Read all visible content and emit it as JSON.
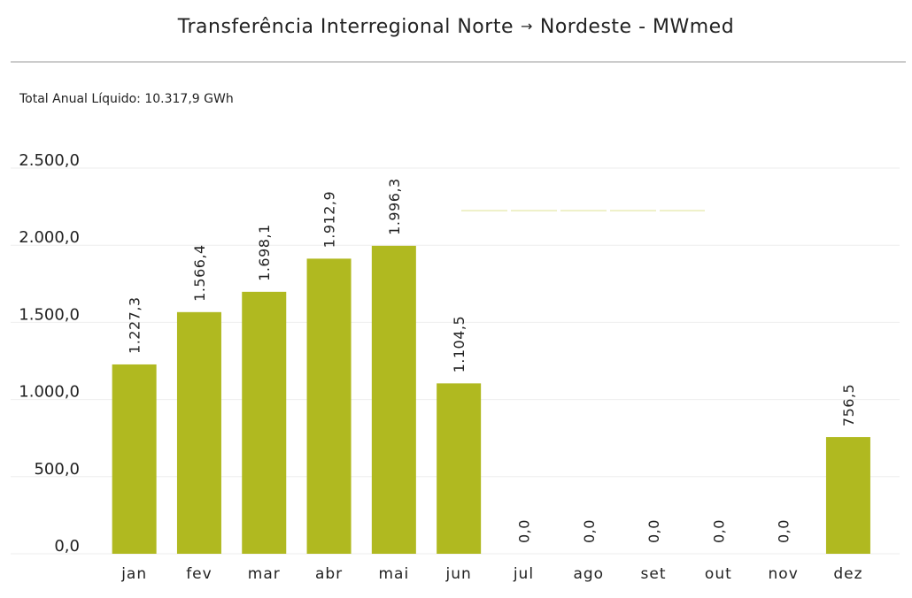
{
  "title_left": "Transferência Interregional Norte",
  "title_arrow": "→",
  "title_right": "Nordeste - MWmed",
  "subtitle": "Total Anual Líquido: 10.317,9 GWh",
  "colors": {
    "bar": "#b0b920",
    "faint_line": "#e9ecb8"
  },
  "chart_data": {
    "type": "bar",
    "title": "Transferência Interregional Norte → Nordeste - MWmed",
    "subtitle": "Total Anual Líquido: 10.317,9 GWh",
    "categories": [
      "jan",
      "fev",
      "mar",
      "abr",
      "mai",
      "jun",
      "jul",
      "ago",
      "set",
      "out",
      "nov",
      "dez"
    ],
    "values": [
      1227.3,
      1566.4,
      1698.1,
      1912.9,
      1996.3,
      1104.5,
      0,
      0,
      0,
      0,
      0,
      756.5
    ],
    "data_labels": [
      "1.227,3",
      "1.566,4",
      "1.698,1",
      "1.912,9",
      "1.996,3",
      "1.104,5",
      "0,0",
      "0,0",
      "0,0",
      "0,0",
      "0,0",
      "756,5"
    ],
    "y_ticks": [
      0,
      500,
      1000,
      1500,
      2000,
      2500
    ],
    "y_tick_labels": [
      "0,0",
      "500,0",
      "1.000,0",
      "1.500,0",
      "2.000,0",
      "2.500,0"
    ],
    "ylim": [
      0,
      2500
    ],
    "xlabel": "",
    "ylabel": "",
    "grid": true,
    "legend": false
  }
}
